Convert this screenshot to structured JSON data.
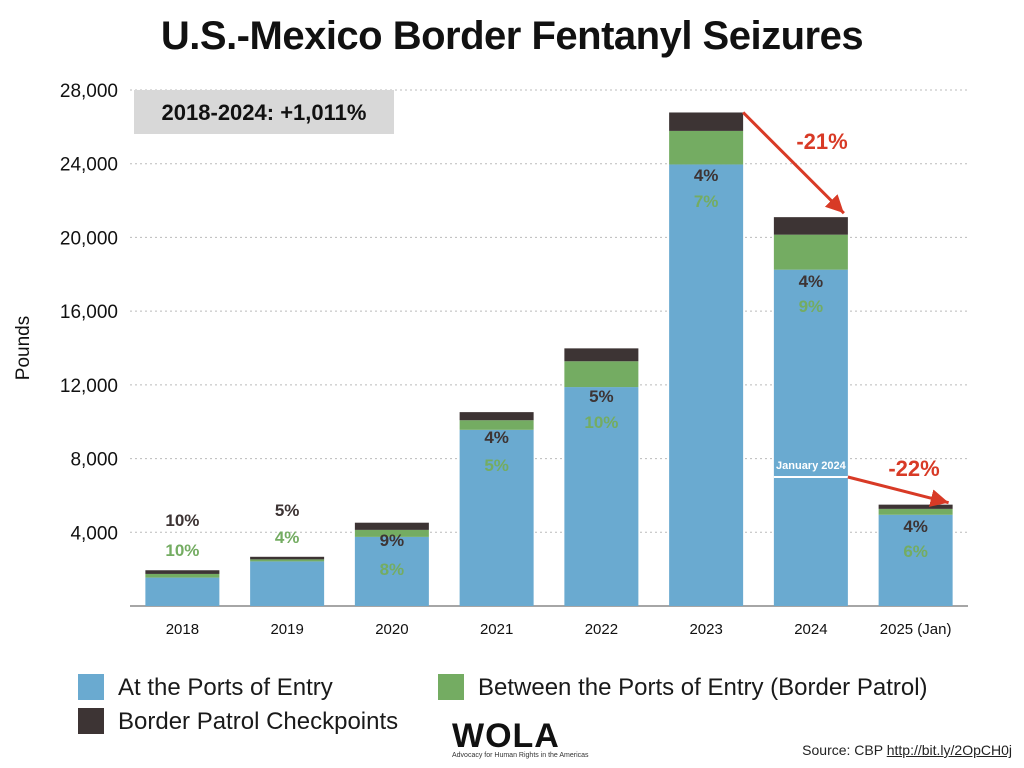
{
  "chart_data": {
    "type": "bar",
    "stacked": true,
    "title": "U.S.-Mexico Border Fentanyl Seizures",
    "ylabel": "Pounds",
    "xlabel": "",
    "ylim": [
      0,
      28000
    ],
    "yticks": [
      4000,
      8000,
      12000,
      16000,
      20000,
      24000,
      28000
    ],
    "ytick_labels": [
      "4,000",
      "8,000",
      "12,000",
      "16,000",
      "20,000",
      "24,000",
      "28,000"
    ],
    "grid": true,
    "categories": [
      "2018",
      "2019",
      "2020",
      "2021",
      "2022",
      "2023",
      "2024",
      "2025 (Jan)"
    ],
    "series": [
      {
        "name": "At the Ports of Entry",
        "color": "#6aaad0",
        "values": [
          1540,
          2420,
          3750,
          9560,
          11880,
          23960,
          18250,
          4950
        ]
      },
      {
        "name": "Between the Ports of Entry (Border Patrol)",
        "color": "#74ac62",
        "values": [
          200,
          110,
          380,
          520,
          1400,
          1820,
          1900,
          320
        ]
      },
      {
        "name": "Border Patrol Checkpoints",
        "color": "#3d3434",
        "values": [
          200,
          140,
          390,
          440,
          700,
          1000,
          950,
          230
        ]
      }
    ],
    "percent_labels": {
      "checkpoints": [
        "10%",
        "5%",
        "9%",
        "4%",
        "5%",
        "4%",
        "4%",
        "4%"
      ],
      "border_patrol": [
        "10%",
        "4%",
        "8%",
        "5%",
        "10%",
        "7%",
        "9%",
        "6%"
      ]
    },
    "annotations": {
      "range_box": "2018-2024: +1,011%",
      "change_2023_2024": "-21%",
      "change_jan": "-22%",
      "january_marker": {
        "label": "January 2024",
        "value": 7000
      }
    },
    "legend_position": "bottom"
  },
  "source": {
    "label": "Source: CBP",
    "link": "http://bit.ly/2OpCH0j"
  },
  "logo": {
    "text": "WOLA",
    "tagline": "Advocacy for Human Rights in the Americas"
  },
  "colors": {
    "arrow": "#d83a26",
    "grid": "#bbbbbb",
    "annotation_box": "#d8d8d8"
  }
}
